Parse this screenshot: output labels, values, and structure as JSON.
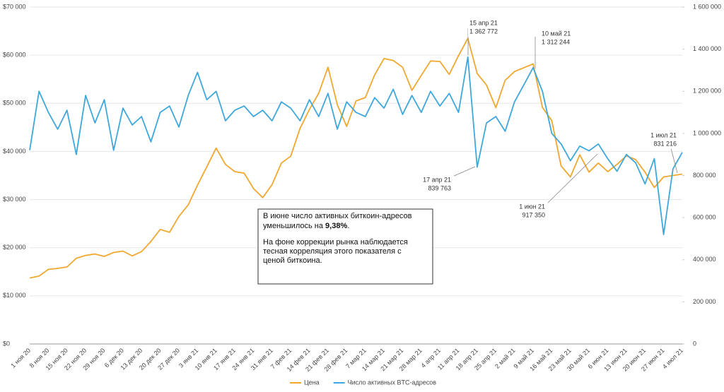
{
  "chart_data": {
    "type": "line",
    "categories": [
      "1 ноя 20",
      null,
      "8 ноя 20",
      null,
      "15 ноя 20",
      null,
      "22 ноя 20",
      null,
      "29 ноя 20",
      null,
      "6 дек 20",
      null,
      "13 дек 20",
      null,
      "20 дек 20",
      null,
      "27 дек 20",
      null,
      "3 янв 21",
      null,
      "10 янв 21",
      null,
      "17 янв 21",
      null,
      "24 янв 21",
      null,
      "31 янв 21",
      null,
      "7 фев 21",
      null,
      "14 фев 21",
      null,
      "21 фев 21",
      null,
      "28 фев 21",
      null,
      "7 мар 21",
      null,
      "14 мар 21",
      null,
      "21 мар 21",
      null,
      "28 мар 21",
      null,
      "4 апр 21",
      null,
      "11 апр 21",
      null,
      "18 апр 21",
      null,
      "25 апр 21",
      null,
      "2 май 21",
      null,
      "9 май 21",
      null,
      "16 май 21",
      null,
      "23 май 21",
      null,
      "30 май 21",
      null,
      "6 июн 21",
      null,
      "13 июн 21",
      null,
      "20 июн 21",
      null,
      "27 июн 21",
      null,
      "4 июл 21"
    ],
    "series": [
      {
        "name": "Цена",
        "color": "#f0a830",
        "values": [
          13700,
          14100,
          15500,
          15700,
          16000,
          17800,
          18400,
          18700,
          18200,
          19000,
          19300,
          18300,
          19200,
          21300,
          23800,
          23200,
          26500,
          28900,
          33000,
          36800,
          40700,
          37300,
          35800,
          35500,
          32300,
          30400,
          33100,
          37600,
          39000,
          44800,
          48700,
          52100,
          57500,
          49700,
          45200,
          50500,
          51200,
          55900,
          59300,
          58900,
          57500,
          52700,
          55800,
          58800,
          58700,
          56000,
          59900,
          63500,
          56200,
          53800,
          49100,
          54800,
          56600,
          57400,
          58200,
          49150,
          46400,
          37000,
          34700,
          39300,
          35700,
          37600,
          35800,
          37300,
          39100,
          38300,
          35700,
          32500,
          34700,
          35000,
          35300
        ]
      },
      {
        "name": "Число активных BTC-адресов",
        "color": "#3ea8dc",
        "axis": "y2",
        "values": [
          920000,
          1200000,
          1100000,
          1020000,
          1110000,
          900000,
          1180000,
          1050000,
          1160000,
          920000,
          1120000,
          1040000,
          1080000,
          960000,
          1100000,
          1130000,
          1030000,
          1180000,
          1290000,
          1160000,
          1200000,
          1060000,
          1110000,
          1130000,
          1080000,
          1110000,
          1060000,
          1150000,
          1120000,
          1060000,
          1160000,
          1080000,
          1190000,
          1020000,
          1150000,
          1100000,
          1080000,
          1170000,
          1120000,
          1210000,
          1090000,
          1180000,
          1100000,
          1200000,
          1130000,
          1190000,
          1100000,
          1362772,
          839763,
          1050000,
          1080000,
          1010000,
          1150000,
          1230000,
          1312244,
          1200000,
          1000000,
          950000,
          870000,
          940000,
          917350,
          950000,
          880000,
          820000,
          900000,
          860000,
          760000,
          880000,
          520000,
          831216,
          910000
        ]
      }
    ],
    "ylim": [
      0,
      70000
    ],
    "yticks": [
      {
        "value": 0,
        "label": "$0"
      },
      {
        "value": 10000,
        "label": "$10 000"
      },
      {
        "value": 20000,
        "label": "$20 000"
      },
      {
        "value": 30000,
        "label": "$30 000"
      },
      {
        "value": 40000,
        "label": "$40 000"
      },
      {
        "value": 50000,
        "label": "$50 000"
      },
      {
        "value": 60000,
        "label": "$60 000"
      },
      {
        "value": 70000,
        "label": "$70 000"
      }
    ],
    "y2lim": [
      0,
      1600000
    ],
    "y2ticks": [
      0,
      {
        "value": 200000,
        "label": "200 000"
      },
      {
        "value": 400000,
        "label": "400 000"
      },
      {
        "value": 600000,
        "label": "600 000"
      },
      {
        "value": 800000,
        "label": "800 000"
      },
      {
        "value": 1000000,
        "label": "1 000 000"
      },
      {
        "value": 1200000,
        "label": "1 200 000"
      },
      {
        "value": 1400000,
        "label": "1 400 000"
      },
      {
        "value": 1600000,
        "label": "1 600 000"
      }
    ],
    "grid": true,
    "legend": "bottom",
    "annotations": [
      [
        "15 апр 21",
        "1 362 772"
      ],
      [
        "10 май 21",
        "1 312 244"
      ],
      [
        "17 апр 21",
        "839 763"
      ],
      [
        "1 июн 21",
        "917 350"
      ],
      [
        "1 июл 21",
        "831 216"
      ]
    ],
    "note": {
      "line1": "В июне число активных биткоин-адресов",
      "line2a": "уменьшилось на ",
      "line2b": "9,38%",
      "line2c": ".",
      "para2": [
        "На фоне коррекции рынка наблюдается",
        "тесная корреляция этого показателя с",
        "ценой биткоина."
      ]
    }
  }
}
